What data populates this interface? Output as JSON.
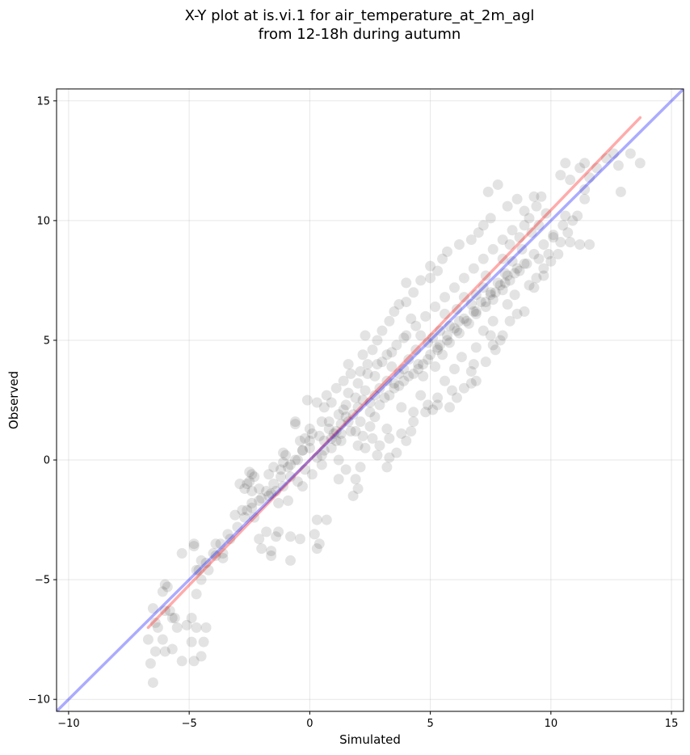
{
  "chart_data": {
    "type": "scatter",
    "title_lines": [
      "X-Y plot at is.vi.1 for air_temperature_at_2m_agl",
      "from 12-18h during autumn"
    ],
    "xlabel": "Simulated",
    "ylabel": "Observed",
    "xlim": [
      -10.5,
      15.5
    ],
    "ylim": [
      -10.5,
      15.5
    ],
    "xticks": [
      -10,
      -5,
      0,
      5,
      10,
      15
    ],
    "yticks": [
      -10,
      -5,
      0,
      5,
      10,
      15
    ],
    "tick_labels": [
      "−10",
      "−5",
      "0",
      "5",
      "10",
      "15"
    ],
    "grid": true,
    "marker_color": "#000000",
    "lines": [
      {
        "color": "#ff0000",
        "x": [
          -6.7,
          13.7
        ],
        "y": [
          -7.0,
          14.3
        ]
      },
      {
        "color": "#0000ff",
        "x": [
          -10.5,
          15.5
        ],
        "y": [
          -10.5,
          15.5
        ]
      }
    ],
    "points": [
      [
        -6.5,
        -9.3
      ],
      [
        -6.6,
        -8.5
      ],
      [
        -6.0,
        -8.0
      ],
      [
        -5.3,
        -8.4
      ],
      [
        -4.8,
        -8.4
      ],
      [
        -4.5,
        -8.2
      ],
      [
        -4.4,
        -7.6
      ],
      [
        -4.9,
        -7.6
      ],
      [
        -6.4,
        -8.0
      ],
      [
        -5.7,
        -7.9
      ],
      [
        -6.7,
        -7.5
      ],
      [
        -6.1,
        -7.5
      ],
      [
        -4.3,
        -7.0
      ],
      [
        -4.7,
        -7.0
      ],
      [
        -5.1,
        -6.9
      ],
      [
        -5.5,
        -7.0
      ],
      [
        -6.3,
        -7.0
      ],
      [
        -6.4,
        -6.8
      ],
      [
        -4.9,
        -6.6
      ],
      [
        -5.6,
        -6.6
      ],
      [
        -5.8,
        -6.3
      ],
      [
        -6.5,
        -6.2
      ],
      [
        -6.0,
        -6.3
      ],
      [
        -5.7,
        -6.6
      ],
      [
        -6.1,
        -5.5
      ],
      [
        -4.7,
        -5.6
      ],
      [
        -5.9,
        -5.3
      ],
      [
        -6.0,
        -5.2
      ],
      [
        -4.5,
        -5.0
      ],
      [
        -4.7,
        -4.6
      ],
      [
        -4.2,
        -4.6
      ],
      [
        -4.5,
        -4.2
      ],
      [
        -3.6,
        -4.1
      ],
      [
        -3.9,
        -4.0
      ],
      [
        -5.3,
        -3.9
      ],
      [
        -3.6,
        -3.9
      ],
      [
        -4.8,
        -3.6
      ],
      [
        -4.8,
        -3.5
      ],
      [
        -3.9,
        -3.5
      ],
      [
        -3.3,
        -3.3
      ],
      [
        -2.0,
        -3.7
      ],
      [
        -1.6,
        -3.8
      ],
      [
        -1.6,
        -4.0
      ],
      [
        -0.8,
        -4.2
      ],
      [
        0.4,
        -3.5
      ],
      [
        0.3,
        -3.7
      ],
      [
        -0.4,
        -3.3
      ],
      [
        -1.3,
        -3.0
      ],
      [
        -1.4,
        -3.2
      ],
      [
        -1.8,
        -3.0
      ],
      [
        -2.1,
        -3.3
      ],
      [
        -0.8,
        -3.2
      ],
      [
        0.3,
        -2.5
      ],
      [
        0.7,
        -2.5
      ],
      [
        0.2,
        -3.1
      ],
      [
        -2.3,
        -2.4
      ],
      [
        -2.6,
        -2.1
      ],
      [
        -2.8,
        -2.1
      ],
      [
        -3.1,
        -2.3
      ],
      [
        -2.4,
        -1.8
      ],
      [
        -2.0,
        -1.6
      ],
      [
        -1.7,
        -1.5
      ],
      [
        -2.4,
        -1.3
      ],
      [
        -2.7,
        -1.2
      ],
      [
        -2.1,
        -1.2
      ],
      [
        -1.6,
        -1.4
      ],
      [
        -1.4,
        -1.3
      ],
      [
        -1.1,
        -1.1
      ],
      [
        -0.9,
        -1.7
      ],
      [
        -1.3,
        -1.8
      ],
      [
        -2.5,
        -0.9
      ],
      [
        -2.6,
        -1.0
      ],
      [
        -2.9,
        -1.0
      ],
      [
        -2.3,
        -0.7
      ],
      [
        -2.5,
        -0.5
      ],
      [
        -2.4,
        -0.6
      ],
      [
        -1.7,
        -0.6
      ],
      [
        -1.5,
        -0.3
      ],
      [
        -1.2,
        -0.4
      ],
      [
        -0.8,
        -0.7
      ],
      [
        -0.5,
        -0.9
      ],
      [
        -0.3,
        -1.1
      ],
      [
        -1.0,
        0.2
      ],
      [
        -0.3,
        0.4
      ],
      [
        -1.1,
        0.3
      ],
      [
        -1.1,
        -0.1
      ],
      [
        -0.5,
        0.0
      ],
      [
        -0.8,
        -0.2
      ],
      [
        -0.2,
        -0.4
      ],
      [
        0.1,
        -0.6
      ],
      [
        0.5,
        -0.2
      ],
      [
        0.3,
        0.1
      ],
      [
        0.6,
        0.4
      ],
      [
        1.2,
        0.0
      ],
      [
        1.5,
        -0.4
      ],
      [
        1.8,
        -1.5
      ],
      [
        1.9,
        -0.8
      ],
      [
        2.0,
        -1.2
      ],
      [
        1.2,
        -0.8
      ],
      [
        2.1,
        -0.3
      ],
      [
        2.3,
        0.5
      ],
      [
        2.8,
        0.2
      ],
      [
        2.9,
        0.6
      ],
      [
        3.3,
        0.1
      ],
      [
        2.0,
        0.6
      ],
      [
        1.1,
        0.8
      ],
      [
        0.6,
        0.8
      ],
      [
        0.0,
        0.5
      ],
      [
        -0.4,
        0.8
      ],
      [
        -0.6,
        1.5
      ],
      [
        -0.6,
        1.6
      ],
      [
        -0.2,
        0.9
      ],
      [
        0.1,
        1.1
      ],
      [
        0.0,
        1.3
      ],
      [
        0.5,
        1.6
      ],
      [
        0.8,
        1.3
      ],
      [
        1.0,
        1.1
      ],
      [
        1.3,
        1.1
      ],
      [
        1.5,
        1.8
      ],
      [
        1.9,
        1.2
      ],
      [
        2.2,
        1.0
      ],
      [
        2.5,
        1.4
      ],
      [
        2.7,
        1.8
      ],
      [
        3.2,
        1.3
      ],
      [
        3.3,
        0.9
      ],
      [
        3.8,
        1.1
      ],
      [
        4.0,
        0.8
      ],
      [
        4.2,
        1.2
      ],
      [
        4.3,
        2.0
      ],
      [
        4.8,
        2.0
      ],
      [
        4.9,
        2.3
      ],
      [
        5.1,
        2.1
      ],
      [
        5.3,
        2.6
      ],
      [
        5.3,
        2.3
      ],
      [
        5.8,
        2.2
      ],
      [
        5.9,
        2.9
      ],
      [
        6.1,
        2.6
      ],
      [
        6.4,
        3.0
      ],
      [
        6.7,
        3.2
      ],
      [
        6.7,
        3.7
      ],
      [
        6.9,
        3.3
      ],
      [
        6.8,
        4.0
      ],
      [
        7.3,
        4.1
      ],
      [
        7.7,
        4.6
      ],
      [
        7.9,
        5.0
      ],
      [
        7.5,
        5.2
      ],
      [
        7.6,
        4.8
      ],
      [
        8.0,
        5.2
      ],
      [
        8.3,
        5.8
      ],
      [
        8.6,
        6.1
      ],
      [
        8.9,
        6.2
      ],
      [
        9.1,
        7.3
      ],
      [
        9.3,
        7.2
      ],
      [
        9.4,
        7.6
      ],
      [
        9.7,
        8.0
      ],
      [
        10.0,
        8.3
      ],
      [
        9.7,
        7.7
      ],
      [
        9.5,
        8.4
      ],
      [
        9.9,
        8.6
      ],
      [
        10.3,
        8.6
      ],
      [
        10.4,
        9.1
      ],
      [
        10.1,
        9.3
      ],
      [
        10.7,
        9.5
      ],
      [
        10.9,
        10.0
      ],
      [
        10.6,
        10.2
      ],
      [
        11.1,
        10.2
      ],
      [
        11.4,
        10.9
      ],
      [
        11.4,
        11.3
      ],
      [
        11.6,
        11.8
      ],
      [
        11.9,
        12.2
      ],
      [
        12.3,
        12.6
      ],
      [
        12.6,
        12.8
      ],
      [
        12.8,
        12.3
      ],
      [
        13.3,
        12.8
      ],
      [
        13.7,
        12.4
      ],
      [
        12.9,
        11.2
      ],
      [
        11.6,
        9.0
      ],
      [
        11.2,
        9.0
      ],
      [
        10.8,
        9.1
      ],
      [
        11.4,
        12.4
      ],
      [
        10.6,
        12.4
      ],
      [
        11.2,
        12.2
      ],
      [
        10.4,
        11.9
      ],
      [
        10.8,
        11.7
      ],
      [
        9.6,
        11.0
      ],
      [
        9.4,
        10.6
      ],
      [
        9.8,
        10.3
      ],
      [
        9.1,
        10.1
      ],
      [
        9.5,
        9.8
      ],
      [
        8.9,
        9.8
      ],
      [
        9.2,
        9.5
      ],
      [
        8.7,
        9.3
      ],
      [
        8.8,
        8.8
      ],
      [
        8.3,
        9.0
      ],
      [
        8.4,
        8.3
      ],
      [
        8.0,
        8.4
      ],
      [
        8.1,
        7.8
      ],
      [
        7.8,
        7.4
      ],
      [
        7.3,
        7.7
      ],
      [
        7.2,
        7.2
      ],
      [
        7.5,
        7.0
      ],
      [
        6.9,
        6.9
      ],
      [
        6.7,
        6.5
      ],
      [
        6.4,
        6.8
      ],
      [
        6.1,
        6.3
      ],
      [
        6.2,
        5.8
      ],
      [
        5.8,
        5.6
      ],
      [
        5.6,
        6.1
      ],
      [
        5.4,
        5.4
      ],
      [
        5.1,
        5.1
      ],
      [
        5.3,
        4.7
      ],
      [
        4.9,
        4.9
      ],
      [
        4.6,
        5.2
      ],
      [
        4.4,
        4.6
      ],
      [
        4.1,
        4.2
      ],
      [
        4.5,
        4.0
      ],
      [
        3.9,
        3.8
      ],
      [
        3.7,
        3.6
      ],
      [
        3.4,
        3.9
      ],
      [
        3.2,
        3.3
      ],
      [
        3.5,
        3.2
      ],
      [
        2.9,
        3.0
      ],
      [
        2.7,
        2.7
      ],
      [
        2.5,
        2.4
      ],
      [
        2.2,
        2.5
      ],
      [
        2.0,
        2.2
      ],
      [
        1.8,
        1.9
      ],
      [
        1.6,
        1.6
      ],
      [
        1.3,
        1.5
      ],
      [
        1.1,
        1.2
      ],
      [
        0.9,
        0.9
      ],
      [
        1.4,
        2.1
      ],
      [
        0.9,
        2.4
      ],
      [
        0.6,
        2.2
      ],
      [
        0.3,
        2.4
      ],
      [
        -0.1,
        2.5
      ],
      [
        0.7,
        2.7
      ],
      [
        1.1,
        3.0
      ],
      [
        1.4,
        3.3
      ],
      [
        1.7,
        3.6
      ],
      [
        2.1,
        3.7
      ],
      [
        1.6,
        4.0
      ],
      [
        2.4,
        4.0
      ],
      [
        2.2,
        4.4
      ],
      [
        2.6,
        4.6
      ],
      [
        2.8,
        5.0
      ],
      [
        2.3,
        5.2
      ],
      [
        3.0,
        5.4
      ],
      [
        3.3,
        5.8
      ],
      [
        3.5,
        6.2
      ],
      [
        3.7,
        6.5
      ],
      [
        4.0,
        6.6
      ],
      [
        4.3,
        7.0
      ],
      [
        4.0,
        7.4
      ],
      [
        4.6,
        7.5
      ],
      [
        5.0,
        7.6
      ],
      [
        5.3,
        7.9
      ],
      [
        5.0,
        8.1
      ],
      [
        5.5,
        8.4
      ],
      [
        5.7,
        8.7
      ],
      [
        6.2,
        9.0
      ],
      [
        6.7,
        9.2
      ],
      [
        7.0,
        9.5
      ],
      [
        7.2,
        9.8
      ],
      [
        7.5,
        10.1
      ],
      [
        7.4,
        11.2
      ],
      [
        7.8,
        11.5
      ],
      [
        8.2,
        10.6
      ],
      [
        8.6,
        10.9
      ],
      [
        8.9,
        10.4
      ],
      [
        9.3,
        11.0
      ],
      [
        3.2,
        -0.3
      ],
      [
        3.6,
        0.3
      ],
      [
        2.6,
        0.9
      ],
      [
        4.3,
        1.6
      ],
      [
        3.8,
        2.2
      ],
      [
        4.6,
        2.7
      ],
      [
        5.6,
        3.3
      ],
      [
        6.0,
        3.8
      ],
      [
        6.3,
        4.3
      ],
      [
        6.9,
        4.7
      ],
      [
        7.2,
        5.4
      ],
      [
        7.6,
        5.8
      ],
      [
        8.2,
        6.5
      ],
      [
        8.5,
        6.9
      ],
      [
        4.2,
        5.9
      ],
      [
        3.9,
        5.1
      ],
      [
        3.4,
        4.5
      ],
      [
        3.0,
        4.1
      ],
      [
        2.7,
        3.5
      ],
      [
        2.3,
        2.9
      ],
      [
        1.9,
        2.6
      ],
      [
        1.5,
        2.3
      ],
      [
        1.2,
        1.9
      ],
      [
        0.8,
        1.6
      ],
      [
        0.4,
        1.0
      ],
      [
        0.0,
        0.8
      ],
      [
        -0.3,
        0.4
      ],
      [
        -0.6,
        0.0
      ],
      [
        -0.9,
        -0.3
      ],
      [
        -1.2,
        -0.7
      ],
      [
        -1.5,
        -1.0
      ],
      [
        -1.8,
        -1.3
      ],
      [
        -2.1,
        -1.7
      ],
      [
        -2.4,
        -2.0
      ],
      [
        -2.7,
        -2.4
      ],
      [
        -3.0,
        -2.8
      ],
      [
        -3.4,
        -3.1
      ],
      [
        -3.7,
        -3.5
      ],
      [
        -4.0,
        -3.9
      ],
      [
        -4.3,
        -4.3
      ],
      [
        -4.6,
        -4.6
      ],
      [
        4.7,
        3.5
      ],
      [
        5.2,
        3.9
      ],
      [
        5.5,
        4.4
      ],
      [
        5.8,
        4.9
      ],
      [
        6.2,
        5.3
      ],
      [
        6.6,
        5.7
      ],
      [
        6.9,
        6.1
      ],
      [
        7.3,
        6.4
      ],
      [
        7.6,
        6.7
      ],
      [
        8.0,
        7.1
      ],
      [
        8.3,
        7.5
      ],
      [
        8.7,
        7.9
      ],
      [
        9.0,
        8.2
      ],
      [
        3.1,
        2.6
      ],
      [
        3.5,
        3.0
      ],
      [
        3.9,
        3.3
      ],
      [
        4.3,
        3.6
      ],
      [
        4.7,
        4.0
      ],
      [
        5.0,
        4.4
      ],
      [
        5.4,
        4.8
      ],
      [
        5.7,
        5.2
      ],
      [
        6.0,
        5.5
      ],
      [
        6.4,
        5.9
      ],
      [
        6.8,
        6.2
      ],
      [
        7.1,
        6.6
      ],
      [
        7.5,
        6.9
      ],
      [
        7.9,
        7.3
      ],
      [
        8.2,
        7.7
      ],
      [
        8.6,
        8.0
      ],
      [
        1.6,
        2.8
      ],
      [
        2.0,
        3.2
      ],
      [
        2.4,
        3.6
      ],
      [
        2.8,
        4.0
      ],
      [
        3.2,
        4.4
      ],
      [
        3.6,
        4.8
      ],
      [
        4.0,
        5.2
      ],
      [
        4.4,
        5.6
      ],
      [
        4.8,
        6.0
      ],
      [
        5.2,
        6.4
      ],
      [
        5.6,
        6.8
      ],
      [
        6.0,
        7.2
      ],
      [
        6.4,
        7.6
      ],
      [
        6.8,
        8.0
      ],
      [
        7.2,
        8.4
      ],
      [
        7.6,
        8.8
      ],
      [
        8.0,
        9.2
      ],
      [
        8.4,
        9.6
      ],
      [
        0.5,
        0.2
      ],
      [
        0.9,
        0.5
      ],
      [
        1.3,
        0.8
      ],
      [
        1.7,
        1.2
      ],
      [
        2.1,
        1.6
      ],
      [
        2.5,
        2.0
      ],
      [
        2.9,
        2.3
      ],
      [
        3.3,
        2.7
      ],
      [
        3.7,
        3.1
      ],
      [
        4.1,
        3.5
      ],
      [
        4.5,
        3.8
      ],
      [
        4.9,
        4.2
      ],
      [
        5.3,
        4.6
      ],
      [
        5.7,
        5.0
      ],
      [
        6.1,
        5.4
      ],
      [
        6.5,
        5.8
      ],
      [
        6.9,
        6.2
      ],
      [
        7.3,
        6.6
      ],
      [
        7.7,
        7.0
      ],
      [
        8.1,
        7.4
      ],
      [
        8.5,
        7.8
      ],
      [
        8.9,
        8.2
      ],
      [
        9.3,
        8.6
      ],
      [
        9.7,
        9.0
      ],
      [
        10.1,
        9.4
      ],
      [
        10.5,
        9.8
      ]
    ]
  }
}
